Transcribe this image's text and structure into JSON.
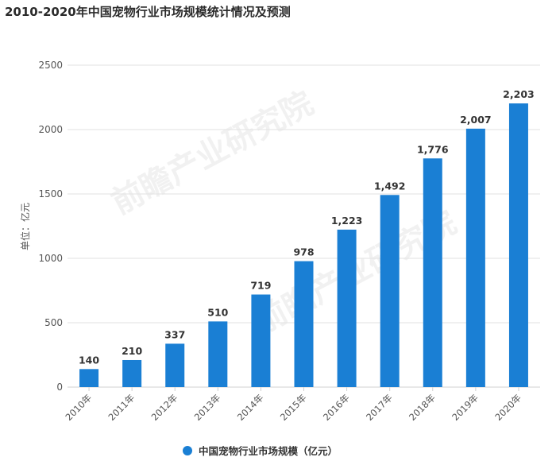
{
  "title": "2010-2020年中国宠物行业市场规模统计情况及预测",
  "chart_data": {
    "type": "bar",
    "title": "2010-2020年中国宠物行业市场规模统计情况及预测",
    "categories": [
      "2010年",
      "2011年",
      "2012年",
      "2013年",
      "2014年",
      "2015年",
      "2016年",
      "2017年",
      "2018年",
      "2019年",
      "2020年"
    ],
    "values": [
      140,
      210,
      337,
      510,
      719,
      978,
      1223,
      1492,
      1776,
      2007,
      2203
    ],
    "data_labels": [
      "140",
      "210",
      "337",
      "510",
      "719",
      "978",
      "1,223",
      "1,492",
      "1,776",
      "2,007",
      "2,203"
    ],
    "series_name": "中国宠物行业市场规模（亿元）",
    "ylabel": "单位：亿元",
    "xlabel": "",
    "ylim": [
      0,
      2500
    ],
    "yticks": [
      0,
      500,
      1000,
      1500,
      2000,
      2500
    ],
    "grid": true,
    "legend": "bottom-center",
    "bar_color": "#1a7fd4"
  },
  "watermark": {
    "text": "前瞻产业研究院"
  }
}
